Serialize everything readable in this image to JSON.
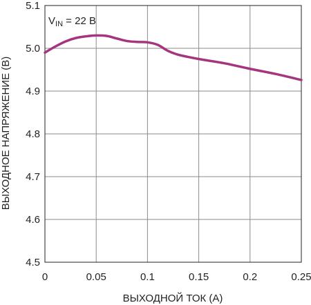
{
  "chart_data": {
    "type": "line",
    "title": "",
    "xlabel": "ВЫХОДНОЙ ТОК (А)",
    "ylabel": "ВЫХОДНОЕ НАПРЯЖЕНИЕ (В)",
    "xlim": [
      0,
      0.25
    ],
    "ylim": [
      4.5,
      5.1
    ],
    "x_ticks": [
      0,
      0.05,
      0.1,
      0.15,
      0.2,
      0.25
    ],
    "x_tick_labels": [
      "0",
      "0.05",
      "0.1",
      "0.15",
      "0.2",
      "0.25"
    ],
    "y_ticks": [
      4.5,
      4.6,
      4.7,
      4.8,
      4.9,
      5.0,
      5.1
    ],
    "y_tick_labels": [
      "4.5",
      "4.6",
      "4.7",
      "4.8",
      "4.9",
      "5.0",
      "5.1"
    ],
    "grid": true,
    "annotation": {
      "prefix": "V",
      "subscript": "IN",
      "suffix": " = 22 В"
    },
    "series": [
      {
        "color": "#a4357e",
        "x": [
          0,
          0.01,
          0.02,
          0.03,
          0.04,
          0.05,
          0.06,
          0.07,
          0.08,
          0.09,
          0.1,
          0.11,
          0.12,
          0.13,
          0.15,
          0.175,
          0.2,
          0.225,
          0.25
        ],
        "y": [
          4.99,
          5.004,
          5.016,
          5.024,
          5.028,
          5.03,
          5.029,
          5.023,
          5.017,
          5.015,
          5.014,
          5.008,
          4.994,
          4.985,
          4.975,
          4.965,
          4.952,
          4.94,
          4.926
        ]
      }
    ]
  }
}
